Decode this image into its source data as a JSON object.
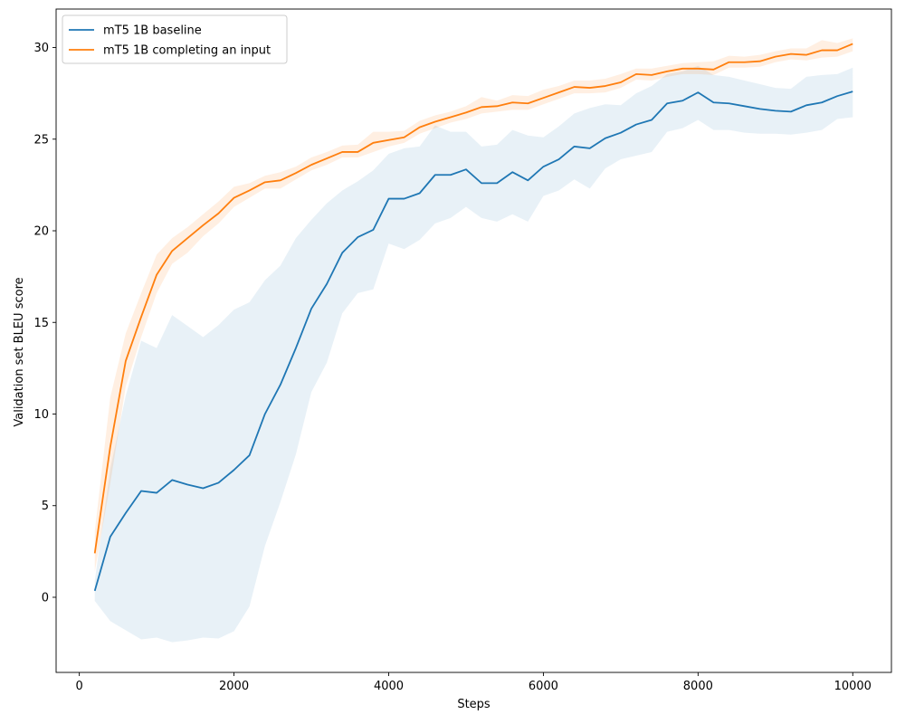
{
  "chart_data": {
    "type": "line",
    "xlabel": "Steps",
    "ylabel": "Validation set BLEU score",
    "xlim": [
      -300,
      10500
    ],
    "ylim": [
      -4.1,
      32.1
    ],
    "x_ticks": [
      0,
      2000,
      4000,
      6000,
      8000,
      10000
    ],
    "y_ticks": [
      0,
      5,
      10,
      15,
      20,
      25,
      30
    ],
    "grid": false,
    "legend_position": "top-left",
    "x": [
      200,
      400,
      600,
      800,
      1000,
      1200,
      1400,
      1600,
      1800,
      2000,
      2200,
      2400,
      2600,
      2800,
      3000,
      3200,
      3400,
      3600,
      3800,
      4000,
      4200,
      4400,
      4600,
      4800,
      5000,
      5200,
      5400,
      5600,
      5800,
      6000,
      6200,
      6400,
      6600,
      6800,
      7000,
      7200,
      7400,
      7600,
      7800,
      8000,
      8200,
      8400,
      8600,
      8800,
      9000,
      9200,
      9400,
      9600,
      9800,
      10000
    ],
    "series": [
      {
        "name": "mT5 1B baseline",
        "color": "#1f77b4",
        "band_color": "#1f77b4",
        "band_opacity": 0.1,
        "values": [
          0.35,
          3.3,
          4.6,
          5.8,
          5.7,
          6.4,
          6.15,
          5.95,
          6.25,
          6.95,
          7.75,
          10.0,
          11.6,
          13.6,
          15.75,
          17.1,
          18.8,
          19.65,
          20.05,
          21.75,
          21.75,
          22.05,
          23.05,
          23.05,
          23.35,
          22.6,
          22.6,
          23.2,
          22.75,
          23.5,
          23.9,
          24.6,
          24.5,
          25.05,
          25.35,
          25.8,
          26.05,
          26.95,
          27.1,
          27.55,
          27.0,
          26.95,
          26.8,
          26.65,
          26.55,
          26.5,
          26.85,
          27.0,
          27.35,
          27.6
        ],
        "lower": [
          -0.2,
          -1.3,
          -1.8,
          -2.3,
          -2.2,
          -2.45,
          -2.35,
          -2.2,
          -2.25,
          -1.85,
          -0.5,
          2.8,
          5.2,
          7.8,
          11.2,
          12.8,
          15.5,
          16.6,
          16.8,
          19.3,
          19.0,
          19.5,
          20.4,
          20.7,
          21.3,
          20.7,
          20.5,
          20.9,
          20.5,
          21.9,
          22.2,
          22.8,
          22.3,
          23.4,
          23.9,
          24.1,
          24.3,
          25.4,
          25.6,
          26.05,
          25.5,
          25.5,
          25.35,
          25.3,
          25.3,
          25.25,
          25.35,
          25.5,
          26.1,
          26.2
        ],
        "upper": [
          0.9,
          7.0,
          11.0,
          14.0,
          13.6,
          15.4,
          14.8,
          14.2,
          14.85,
          15.7,
          16.1,
          17.3,
          18.1,
          19.6,
          20.6,
          21.5,
          22.2,
          22.7,
          23.3,
          24.2,
          24.5,
          24.6,
          25.75,
          25.4,
          25.4,
          24.6,
          24.7,
          25.5,
          25.2,
          25.1,
          25.7,
          26.4,
          26.7,
          26.9,
          26.85,
          27.5,
          27.9,
          28.55,
          28.7,
          29.0,
          28.5,
          28.4,
          28.2,
          28.0,
          27.8,
          27.75,
          28.4,
          28.5,
          28.55,
          28.9
        ]
      },
      {
        "name": "mT5 1B completing an input",
        "color": "#ff7f0e",
        "band_color": "#ff7f0e",
        "band_opacity": 0.12,
        "values": [
          2.4,
          8.2,
          12.9,
          15.3,
          17.6,
          18.9,
          19.6,
          20.3,
          20.95,
          21.8,
          22.2,
          22.65,
          22.75,
          23.15,
          23.6,
          23.95,
          24.3,
          24.3,
          24.8,
          24.95,
          25.1,
          25.65,
          25.95,
          26.2,
          26.45,
          26.75,
          26.8,
          27.0,
          26.95,
          27.25,
          27.55,
          27.85,
          27.8,
          27.9,
          28.1,
          28.55,
          28.5,
          28.7,
          28.85,
          28.85,
          28.8,
          29.2,
          29.2,
          29.25,
          29.5,
          29.65,
          29.6,
          29.85,
          29.85,
          30.2
        ],
        "lower": [
          1.4,
          6.2,
          11.5,
          14.2,
          16.6,
          18.2,
          18.8,
          19.7,
          20.4,
          21.3,
          21.8,
          22.3,
          22.3,
          22.8,
          23.3,
          23.6,
          24.0,
          24.0,
          24.3,
          24.6,
          24.8,
          25.3,
          25.6,
          25.9,
          26.1,
          26.4,
          26.5,
          26.6,
          26.6,
          26.9,
          27.2,
          27.5,
          27.5,
          27.55,
          27.8,
          28.25,
          28.2,
          28.4,
          28.55,
          28.55,
          28.5,
          28.9,
          28.9,
          28.95,
          29.2,
          29.35,
          29.3,
          29.45,
          29.5,
          29.8
        ],
        "upper": [
          3.6,
          10.9,
          14.4,
          16.6,
          18.7,
          19.6,
          20.2,
          20.9,
          21.6,
          22.4,
          22.6,
          23.0,
          23.2,
          23.5,
          24.0,
          24.3,
          24.65,
          24.7,
          25.4,
          25.4,
          25.45,
          26.0,
          26.3,
          26.5,
          26.8,
          27.3,
          27.1,
          27.4,
          27.35,
          27.7,
          27.9,
          28.2,
          28.2,
          28.3,
          28.55,
          28.85,
          28.85,
          29.0,
          29.15,
          29.2,
          29.25,
          29.55,
          29.5,
          29.6,
          29.8,
          29.95,
          29.95,
          30.4,
          30.25,
          30.5
        ]
      }
    ]
  }
}
